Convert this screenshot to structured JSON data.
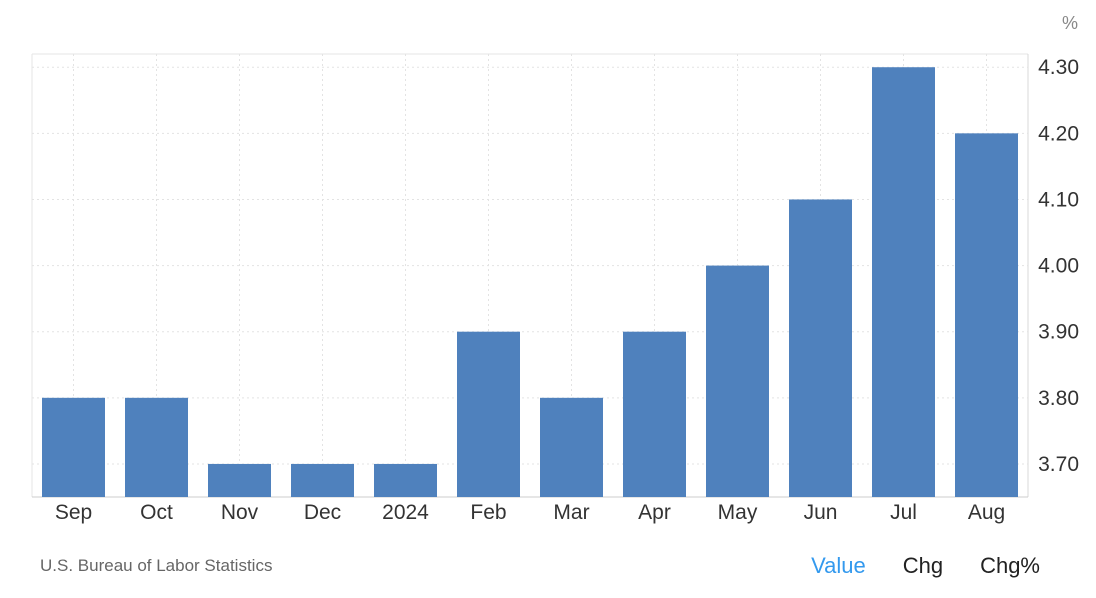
{
  "chart_data": {
    "type": "bar",
    "unit": "%",
    "categories": [
      "Sep",
      "Oct",
      "Nov",
      "Dec",
      "2024",
      "Feb",
      "Mar",
      "Apr",
      "May",
      "Jun",
      "Jul",
      "Aug"
    ],
    "values": [
      3.8,
      3.8,
      3.7,
      3.7,
      3.7,
      3.9,
      3.8,
      3.9,
      4.0,
      4.1,
      4.3,
      4.2
    ],
    "yticks": [
      "3.70",
      "3.80",
      "3.90",
      "4.00",
      "4.10",
      "4.20",
      "4.30"
    ],
    "ylim": [
      3.65,
      4.32
    ],
    "grid": true,
    "y_axis_side": "right",
    "bar_color": "#4f81bd"
  },
  "footer": {
    "source": "U.S. Bureau of Labor Statistics",
    "toggles": {
      "value": "Value",
      "chg": "Chg",
      "chg_pct": "Chg%"
    },
    "active_color": "#3399ee"
  }
}
